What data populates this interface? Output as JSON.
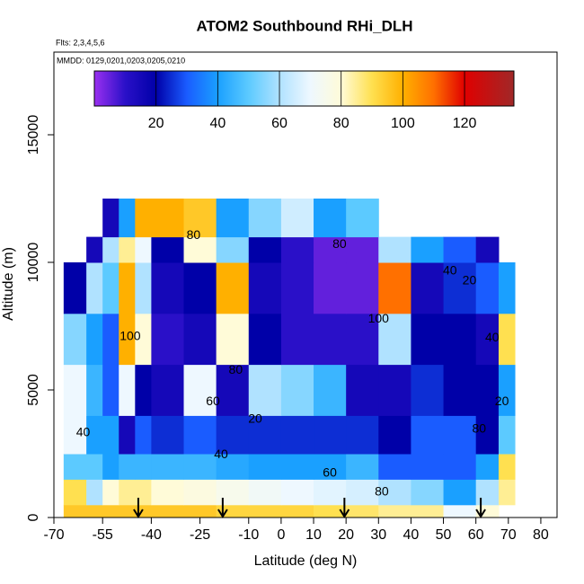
{
  "chart_data": {
    "type": "heatmap",
    "title": "ATOM2 Southbound RHi_DLH",
    "subtitle": "Flts: 2,3,4,5,6",
    "note": "MMDD: 0129,0201,0203,0205,0210",
    "x_label": "Latitude (deg N)",
    "y_label": "Altitude (m)",
    "xlim": [
      -70,
      85
    ],
    "xticks": [
      -70,
      -55,
      -40,
      -25,
      -10,
      0,
      10,
      20,
      30,
      40,
      50,
      60,
      70,
      80
    ],
    "ylim": [
      0,
      18240
    ],
    "yticks": [
      0,
      5000,
      10000,
      15000
    ],
    "clim": [
      0,
      136
    ],
    "cticks": [
      20,
      40,
      60,
      80,
      100,
      120
    ],
    "colorscale": [
      [
        0,
        "#9a30f0"
      ],
      [
        10,
        "#2a10c8"
      ],
      [
        20,
        "#0000a8"
      ],
      [
        30,
        "#1a5cff"
      ],
      [
        40,
        "#1aa0ff"
      ],
      [
        50,
        "#5ccaff"
      ],
      [
        60,
        "#b0e2ff"
      ],
      [
        70,
        "#eef8ff"
      ],
      [
        80,
        "#fffbd8"
      ],
      [
        90,
        "#ffe050"
      ],
      [
        100,
        "#ffb000"
      ],
      [
        110,
        "#ff7000"
      ],
      [
        120,
        "#e00000"
      ],
      [
        136,
        "#a02828"
      ]
    ],
    "x_edges": [
      -67,
      -60,
      -55,
      -50,
      -45,
      -40,
      -30,
      -20,
      -10,
      0,
      10,
      20,
      30,
      40,
      50,
      60,
      67,
      72
    ],
    "y_edges": [
      0,
      500,
      1500,
      2500,
      4000,
      6000,
      8000,
      10000,
      11000,
      12500
    ],
    "z": [
      [
        95,
        95,
        95,
        95,
        95,
        95,
        95,
        92,
        92,
        92,
        90,
        88,
        85,
        85,
        70,
        80,
        null
      ],
      [
        90,
        60,
        80,
        85,
        85,
        80,
        78,
        75,
        72,
        70,
        68,
        66,
        60,
        55,
        40,
        60,
        85
      ],
      [
        50,
        50,
        40,
        45,
        45,
        45,
        45,
        42,
        40,
        40,
        40,
        45,
        30,
        30,
        30,
        40,
        90
      ],
      [
        70,
        40,
        40,
        15,
        30,
        25,
        30,
        25,
        25,
        25,
        25,
        25,
        20,
        30,
        30,
        20,
        50
      ],
      [
        70,
        45,
        30,
        70,
        20,
        15,
        70,
        15,
        60,
        55,
        45,
        15,
        15,
        25,
        20,
        20,
        40
      ],
      [
        55,
        40,
        30,
        100,
        80,
        10,
        15,
        80,
        20,
        10,
        10,
        10,
        60,
        20,
        20,
        15,
        90
      ],
      [
        20,
        60,
        50,
        100,
        60,
        15,
        20,
        100,
        15,
        10,
        5,
        5,
        110,
        15,
        25,
        30,
        40
      ],
      [
        null,
        15,
        60,
        85,
        70,
        20,
        80,
        55,
        20,
        10,
        5,
        5,
        60,
        40,
        30,
        15,
        null
      ],
      [
        null,
        null,
        15,
        40,
        100,
        100,
        95,
        40,
        55,
        65,
        40,
        50,
        null,
        null,
        null,
        null,
        null
      ]
    ],
    "contour_labels": [
      {
        "value": 80,
        "x": -27,
        "y": 11050
      },
      {
        "value": 80,
        "x": 18,
        "y": 10700
      },
      {
        "value": 40,
        "x": 52,
        "y": 9650
      },
      {
        "value": 20,
        "x": 58,
        "y": 9260
      },
      {
        "value": 100,
        "x": -46.5,
        "y": 7080
      },
      {
        "value": 100,
        "x": 30,
        "y": 7780
      },
      {
        "value": 80,
        "x": -14,
        "y": 5770
      },
      {
        "value": 60,
        "x": -21,
        "y": 4540
      },
      {
        "value": 20,
        "x": -8,
        "y": 3840
      },
      {
        "value": 40,
        "x": -18.5,
        "y": 2460
      },
      {
        "value": 60,
        "x": 15,
        "y": 1725
      },
      {
        "value": 80,
        "x": 31,
        "y": 990
      },
      {
        "value": 40,
        "x": -61,
        "y": 3310
      },
      {
        "value": 40,
        "x": 65,
        "y": 7040
      },
      {
        "value": 20,
        "x": 68,
        "y": 4540
      },
      {
        "value": 80,
        "x": 61,
        "y": 3450
      }
    ],
    "arrows": [
      -44,
      -18,
      19.5,
      61.5
    ]
  }
}
